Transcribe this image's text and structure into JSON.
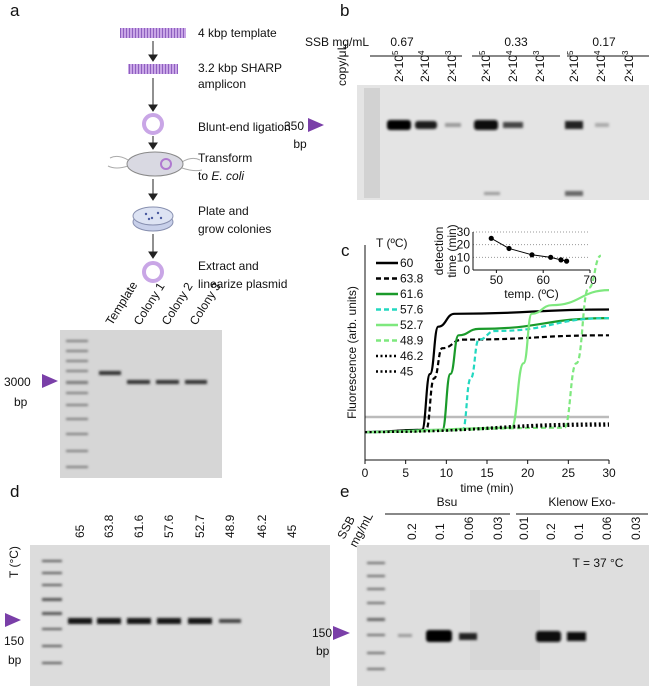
{
  "panel_a": {
    "label": "a",
    "steps": [
      [
        "4 kbp template"
      ],
      [
        "3.2 kbp SHARP",
        "amplicon"
      ],
      [
        "Blunt-end ligation"
      ],
      [
        "Transform",
        [
          "to ",
          "E. coli"
        ]
      ],
      [
        "Plate and",
        "grow colonies"
      ],
      [
        "Extract and",
        "linearize plasmid"
      ]
    ],
    "gel_lanes": [
      "Template",
      "Colony 1",
      "Colony 2",
      "Colony 3"
    ],
    "marker": "3000",
    "marker_unit": "bp"
  },
  "panel_b": {
    "label": "b",
    "ssb_label": "SSB mg/mL",
    "copy_label": "copy/μL",
    "concentrations": [
      0.67,
      0.33,
      0.17
    ],
    "lanes": [
      {
        "base": "2×10",
        "exp": 5
      },
      {
        "base": "2×10",
        "exp": 4
      },
      {
        "base": "2×10",
        "exp": 3
      },
      {
        "base": "2×10",
        "exp": 5
      },
      {
        "base": "2×10",
        "exp": 4
      },
      {
        "base": "2×10",
        "exp": 3
      },
      {
        "base": "2×10",
        "exp": 5
      },
      {
        "base": "2×10",
        "exp": 4
      },
      {
        "base": "2×10",
        "exp": 3
      }
    ],
    "marker": "350",
    "marker_unit": "bp"
  },
  "panel_c": {
    "label": "c"
  },
  "chart_data": [
    {
      "type": "line",
      "legend_title": "T (ºC)",
      "xlabel": "time (min)",
      "ylabel": "Fluorescence (arb. units)",
      "xlim": [
        0,
        30
      ],
      "xticks": [
        0,
        5,
        10,
        15,
        20,
        25,
        30
      ],
      "ylim": [
        0,
        100
      ],
      "threshold": 20,
      "series": [
        {
          "name": "60",
          "color": "#000000",
          "dash": "solid",
          "x": [
            0,
            7,
            8,
            9,
            11,
            30
          ],
          "values": [
            13,
            14,
            40,
            62,
            68,
            70
          ]
        },
        {
          "name": "63.8",
          "color": "#000000",
          "dash": "dashed",
          "x": [
            0,
            7.5,
            8.5,
            9.5,
            12,
            30
          ],
          "values": [
            13,
            14,
            38,
            52,
            56,
            58
          ]
        },
        {
          "name": "61.6",
          "color": "#1a9a2a",
          "dash": "solid",
          "x": [
            0,
            9.5,
            10.5,
            11.5,
            14,
            30
          ],
          "values": [
            13,
            14,
            40,
            58,
            61,
            66
          ]
        },
        {
          "name": "57.6",
          "color": "#22d8c0",
          "dash": "dashed",
          "x": [
            0,
            12,
            13,
            14,
            16,
            30
          ],
          "values": [
            13,
            14,
            38,
            56,
            60,
            66
          ]
        },
        {
          "name": "52.7",
          "color": "#7ee87e",
          "dash": "solid",
          "x": [
            0,
            18,
            19.5,
            20.5,
            23,
            30
          ],
          "values": [
            13,
            15,
            45,
            68,
            72,
            79
          ]
        },
        {
          "name": "48.9",
          "color": "#7ee87e",
          "dash": "dashed",
          "x": [
            0,
            24.5,
            26,
            27.5,
            29
          ],
          "values": [
            13,
            15,
            45,
            80,
            95
          ]
        },
        {
          "name": "46.2",
          "color": "#000000",
          "dash": "dotted",
          "x": [
            0,
            30
          ],
          "values": [
            13,
            17
          ]
        },
        {
          "name": "45",
          "color": "#000000",
          "dash": "dotted",
          "x": [
            0,
            30
          ],
          "values": [
            13,
            16
          ]
        }
      ]
    },
    {
      "type": "line",
      "xlabel": "temp. (ºC)",
      "ylabel": [
        "detection",
        "time (min)"
      ],
      "xlim": [
        45,
        70
      ],
      "xticks": [
        50,
        60,
        70
      ],
      "ylim": [
        0,
        30
      ],
      "yticks": [
        0,
        10,
        20,
        30
      ],
      "grid": true,
      "color": "#000000",
      "x": [
        48.9,
        52.7,
        57.6,
        61.6,
        63.8,
        65
      ],
      "values": [
        25,
        17,
        12,
        10,
        8,
        7
      ]
    }
  ],
  "panel_d": {
    "label": "d",
    "axis_label": "T (°C)",
    "temperatures": [
      65,
      63.8,
      61.6,
      57.6,
      52.7,
      48.9,
      46.2,
      45
    ],
    "marker": "150",
    "marker_unit": "bp"
  },
  "panel_e": {
    "label": "e",
    "ssb_label": [
      "SSB",
      "mg/mL"
    ],
    "groups": [
      "Bsu",
      "Klenow Exo-"
    ],
    "lanes": [
      0.2,
      0.1,
      0.06,
      0.03,
      0.01,
      0.2,
      0.1,
      0.06,
      0.03
    ],
    "temperature_note": "T = 37 °C",
    "marker": "150",
    "marker_unit": "bp"
  }
}
